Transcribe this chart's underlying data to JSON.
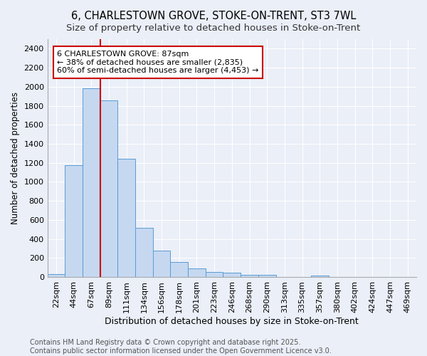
{
  "title": "6, CHARLESTOWN GROVE, STOKE-ON-TRENT, ST3 7WL",
  "subtitle": "Size of property relative to detached houses in Stoke-on-Trent",
  "xlabel": "Distribution of detached houses by size in Stoke-on-Trent",
  "ylabel": "Number of detached properties",
  "categories": [
    "22sqm",
    "44sqm",
    "67sqm",
    "89sqm",
    "111sqm",
    "134sqm",
    "156sqm",
    "178sqm",
    "201sqm",
    "223sqm",
    "246sqm",
    "268sqm",
    "290sqm",
    "313sqm",
    "335sqm",
    "357sqm",
    "380sqm",
    "402sqm",
    "424sqm",
    "447sqm",
    "469sqm"
  ],
  "values": [
    28,
    1175,
    1980,
    1855,
    1240,
    515,
    275,
    158,
    93,
    50,
    43,
    22,
    20,
    0,
    0,
    15,
    0,
    0,
    0,
    0,
    0
  ],
  "bar_color": "#c5d8f0",
  "bar_edge_color": "#5b9bd5",
  "vline_x_index": 2.5,
  "vline_color": "#cc0000",
  "annotation_text": "6 CHARLESTOWN GROVE: 87sqm\n← 38% of detached houses are smaller (2,835)\n60% of semi-detached houses are larger (4,453) →",
  "annotation_box_color": "#cc0000",
  "ylim": [
    0,
    2500
  ],
  "yticks": [
    0,
    200,
    400,
    600,
    800,
    1000,
    1200,
    1400,
    1600,
    1800,
    2000,
    2200,
    2400
  ],
  "bg_color": "#eaeff8",
  "plot_bg_color": "#eaeff8",
  "grid_color": "#ffffff",
  "footer_text": "Contains HM Land Registry data © Crown copyright and database right 2025.\nContains public sector information licensed under the Open Government Licence v3.0.",
  "title_fontsize": 10.5,
  "subtitle_fontsize": 9.5,
  "xlabel_fontsize": 9,
  "ylabel_fontsize": 8.5,
  "tick_fontsize": 8,
  "footer_fontsize": 7,
  "ann_fontsize": 8
}
